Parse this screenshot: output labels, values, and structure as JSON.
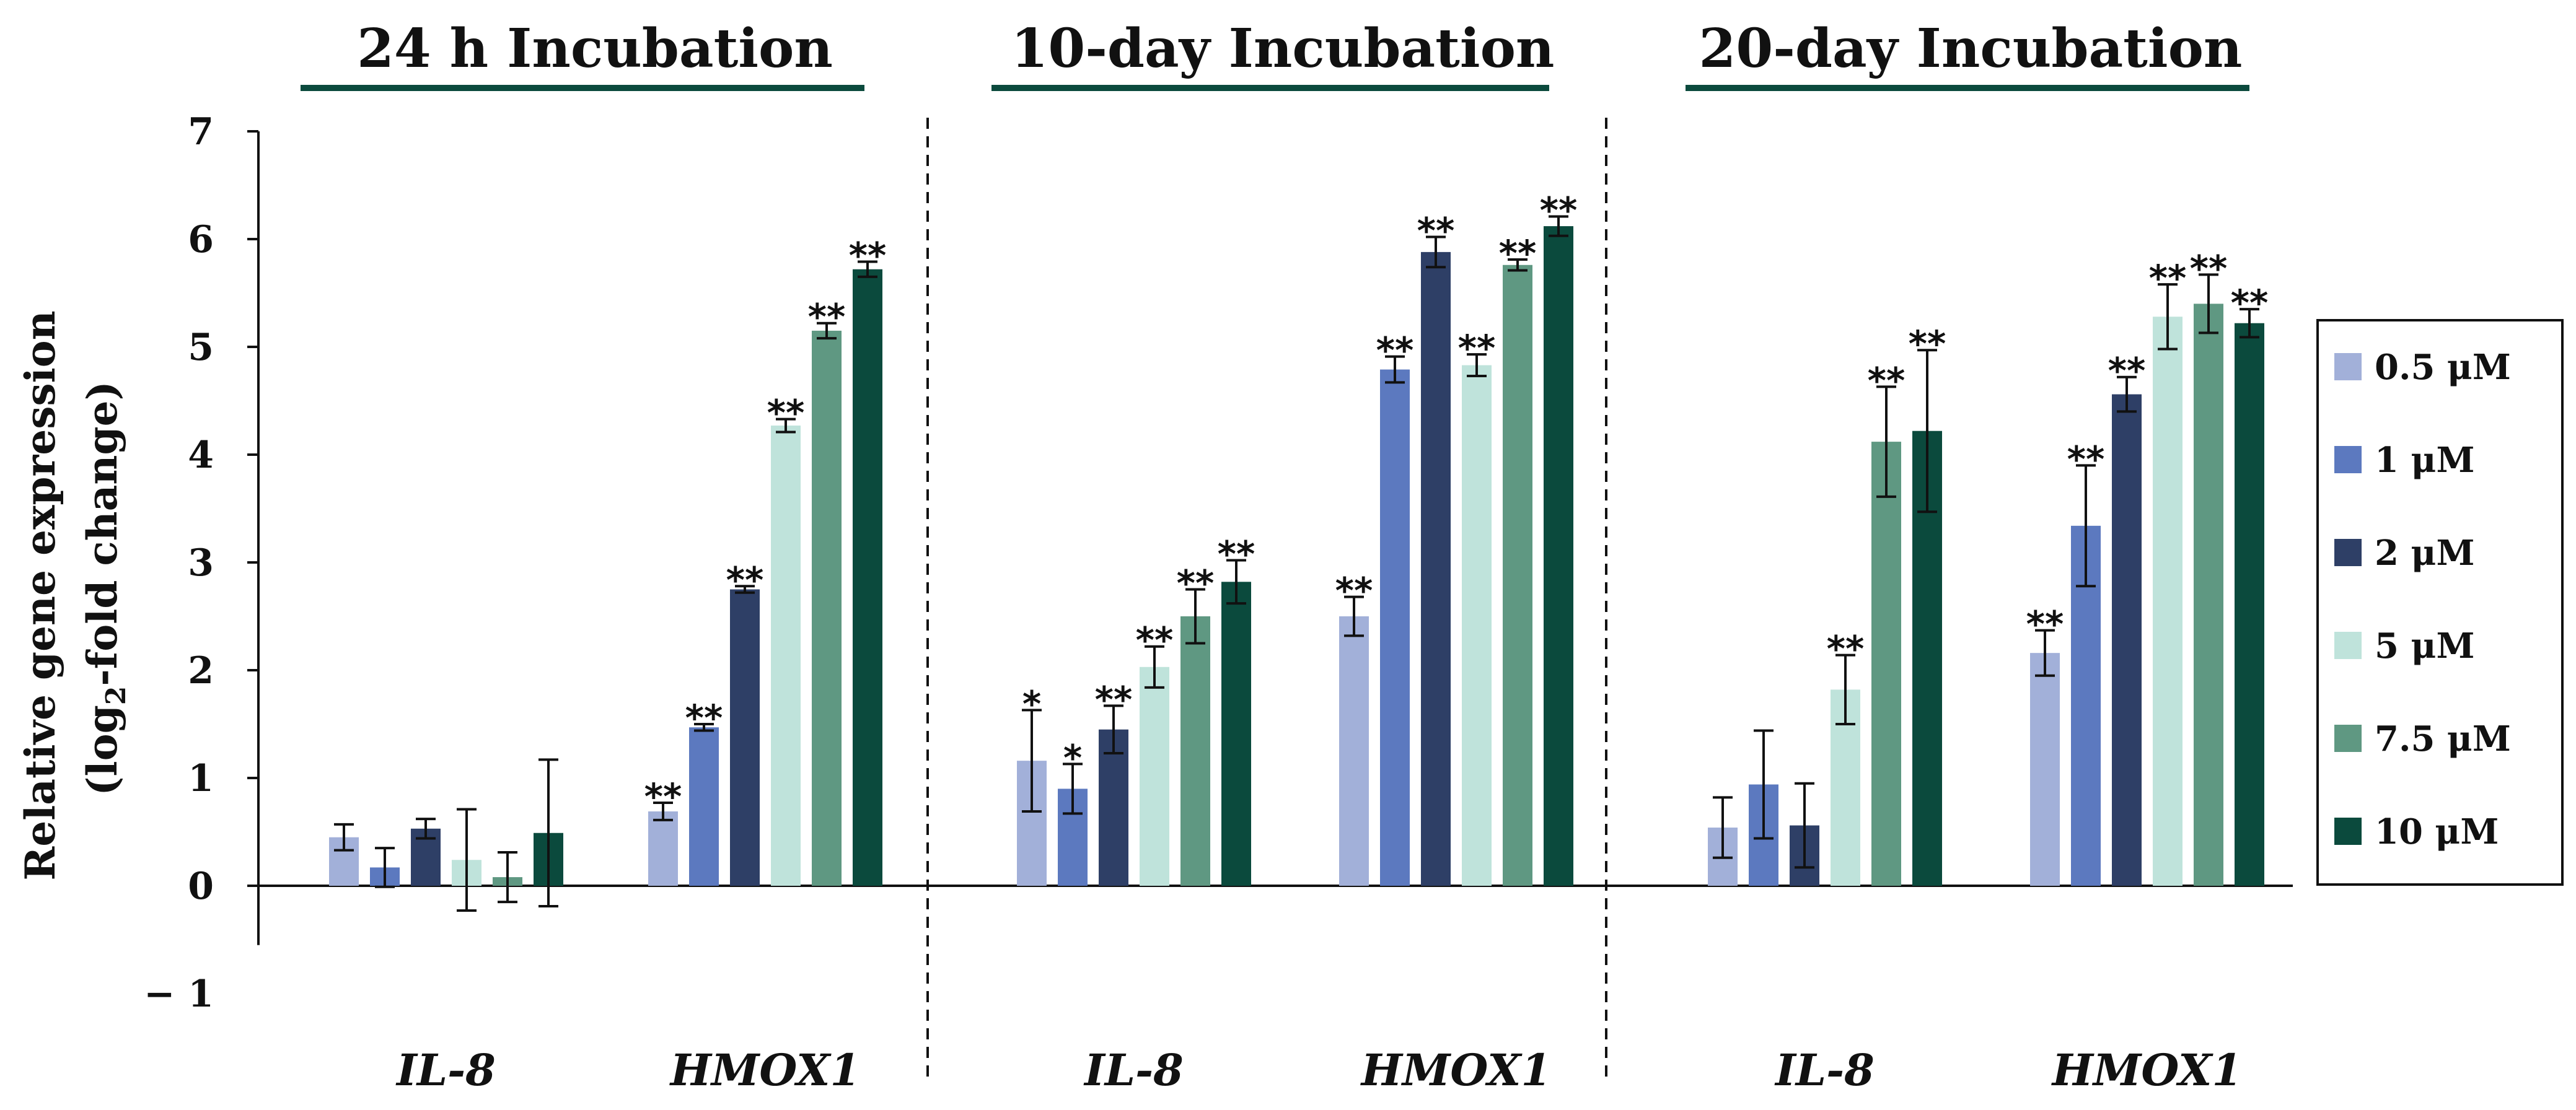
{
  "chart_data": {
    "type": "bar",
    "ylabel_line1": "Relative gene expression",
    "ylabel_line2_prefix": "(log",
    "ylabel_line2_sub": "2",
    "ylabel_line2_suffix": "-fold change)",
    "ylim": [
      -1,
      7
    ],
    "yticks": [
      "7",
      "6",
      "5",
      "4",
      "3",
      "2",
      "1",
      "0",
      "− 1"
    ],
    "ytick_values": [
      7,
      6,
      5,
      4,
      3,
      2,
      1,
      0,
      -1
    ],
    "legend_position": "right",
    "series": [
      {
        "name": "0.5 μM",
        "color": "#a2b0d9"
      },
      {
        "name": "1 μM",
        "color": "#5c79bf"
      },
      {
        "name": "2 μM",
        "color": "#2e3f66"
      },
      {
        "name": "5 μM",
        "color": "#bfe3db"
      },
      {
        "name": "7.5 μM",
        "color": "#5f9882"
      },
      {
        "name": "10 μM",
        "color": "#0b4a3d"
      }
    ],
    "panels": [
      {
        "title": "24 h Incubation",
        "groups": [
          {
            "label": "IL-8",
            "values": [
              0.45,
              0.17,
              0.53,
              0.24,
              0.08,
              0.49
            ],
            "errors": [
              0.12,
              0.18,
              0.09,
              0.47,
              0.23,
              0.68
            ],
            "sig": [
              "",
              "",
              "",
              "",
              "",
              ""
            ]
          },
          {
            "label": "HMOX1",
            "values": [
              0.69,
              1.47,
              2.75,
              4.27,
              5.15,
              5.72
            ],
            "errors": [
              0.08,
              0.03,
              0.03,
              0.06,
              0.07,
              0.07
            ],
            "sig": [
              "**",
              "**",
              "**",
              "**",
              "**",
              "**"
            ]
          }
        ]
      },
      {
        "title": "10-day Incubation",
        "groups": [
          {
            "label": "IL-8",
            "values": [
              1.16,
              0.9,
              1.45,
              2.03,
              2.5,
              2.82
            ],
            "errors": [
              0.47,
              0.23,
              0.22,
              0.19,
              0.25,
              0.2
            ],
            "sig": [
              "*",
              "*",
              "**",
              "**",
              "**",
              "**"
            ]
          },
          {
            "label": "HMOX1",
            "values": [
              2.5,
              4.79,
              5.88,
              4.83,
              5.76,
              6.12
            ],
            "errors": [
              0.18,
              0.12,
              0.14,
              0.1,
              0.05,
              0.09
            ],
            "sig": [
              "**",
              "**",
              "**",
              "**",
              "**",
              "**"
            ]
          }
        ]
      },
      {
        "title": "20-day Incubation",
        "groups": [
          {
            "label": "IL-8",
            "values": [
              0.54,
              0.94,
              0.56,
              1.82,
              4.12,
              4.22
            ],
            "errors": [
              0.28,
              0.5,
              0.39,
              0.32,
              0.51,
              0.75
            ],
            "sig": [
              "",
              "",
              "",
              "**",
              "**",
              "**"
            ]
          },
          {
            "label": "HMOX1",
            "values": [
              2.16,
              3.34,
              4.56,
              5.28,
              5.4,
              5.22
            ],
            "errors": [
              0.21,
              0.56,
              0.16,
              0.3,
              0.27,
              0.13
            ],
            "sig": [
              "**",
              "**",
              "**",
              "**",
              "**",
              "**"
            ]
          }
        ]
      }
    ]
  }
}
